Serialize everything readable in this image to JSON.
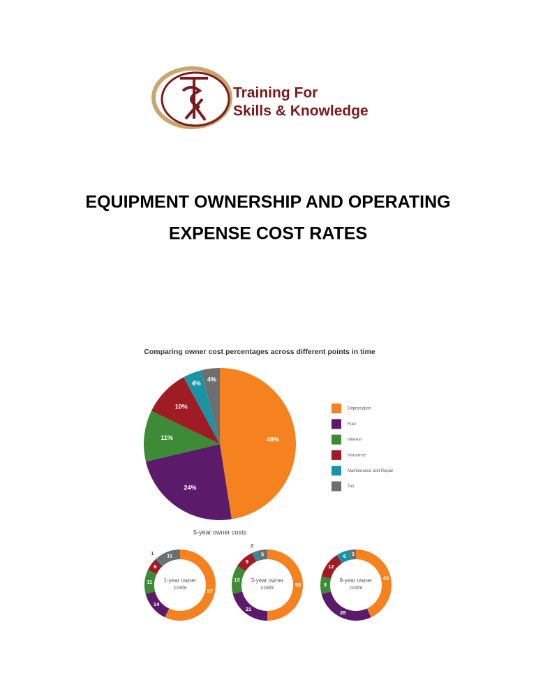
{
  "logo": {
    "line1": "Training For",
    "line2": "Skills & Knowledge"
  },
  "title_lines": [
    "EQUIPMENT OWNERSHIP AND OPERATING",
    "EXPENSE COST RATES"
  ],
  "chart_data": [
    {
      "type": "pie",
      "title": "Comparing owner cost percentages across different points in time",
      "caption": "5-year owner costs",
      "categories": [
        "Depreciation",
        "Fuel",
        "Interest",
        "Insurance",
        "Maintenance and Repair",
        "Tax"
      ],
      "colors": [
        "#f5821f",
        "#5c1a6b",
        "#3d8b37",
        "#a01c24",
        "#1a93a5",
        "#6d6e70"
      ],
      "values": [
        48,
        24,
        11,
        10,
        4,
        4
      ],
      "value_labels": [
        "48%",
        "24%",
        "11%",
        "10%",
        "4%",
        "4%"
      ]
    },
    {
      "type": "donut",
      "center_label": "1-year owner costs",
      "values": [
        57,
        14,
        11,
        6,
        1,
        11
      ]
    },
    {
      "type": "donut",
      "center_label": "3-year owner costs",
      "values": [
        50,
        21,
        13,
        9,
        2,
        5
      ]
    },
    {
      "type": "donut",
      "center_label": "8-year owner costs",
      "values": [
        43,
        28,
        8,
        12,
        6,
        3
      ]
    }
  ]
}
